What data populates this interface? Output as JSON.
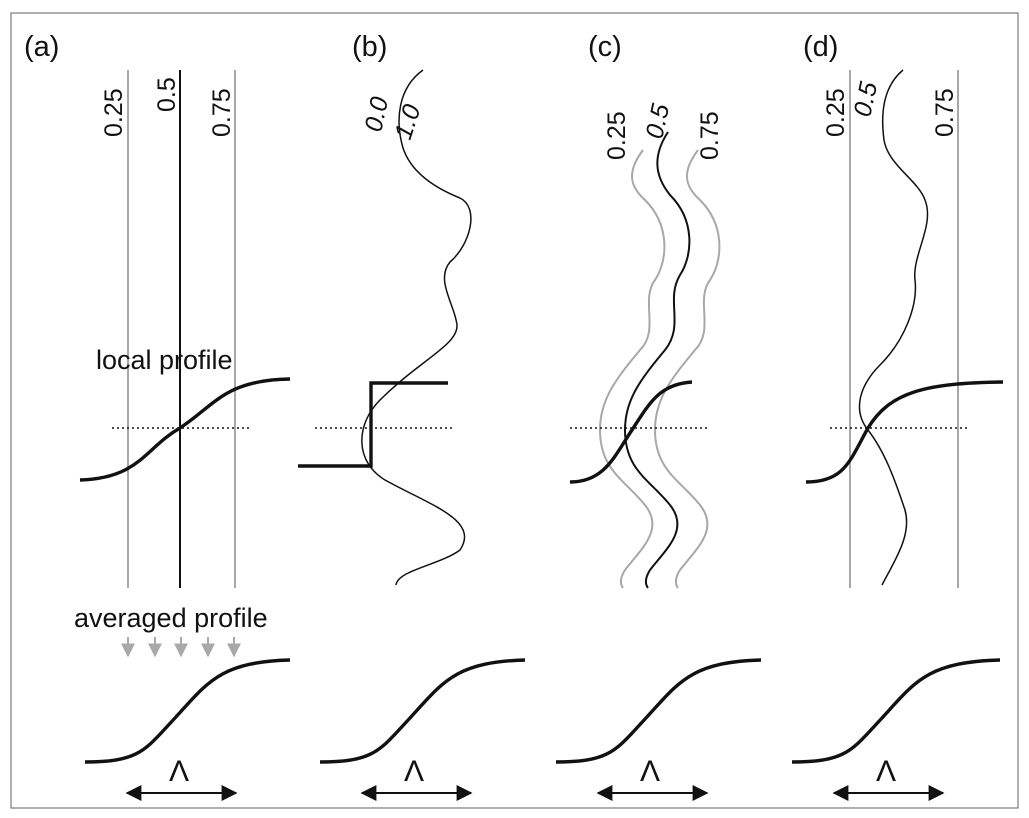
{
  "figure": {
    "panels": [
      {
        "letter": "(a)",
        "contour_labels": [
          "0.25",
          "0.5",
          "0.75"
        ],
        "local_label": "local profile",
        "averaged_label": "averaged profile",
        "width_symbol": "Λ"
      },
      {
        "letter": "(b)",
        "contour_labels": [
          "0.0",
          "1.0"
        ],
        "width_symbol": "Λ"
      },
      {
        "letter": "(c)",
        "contour_labels": [
          "0.25",
          "0.5",
          "0.75"
        ],
        "width_symbol": "Λ"
      },
      {
        "letter": "(d)",
        "contour_labels": [
          "0.25",
          "0.5",
          "0.75"
        ],
        "width_symbol": "Λ"
      }
    ],
    "colors": {
      "black_line": "#111111",
      "gray_line": "#a8a8a8",
      "border": "#7a7a7a"
    }
  }
}
